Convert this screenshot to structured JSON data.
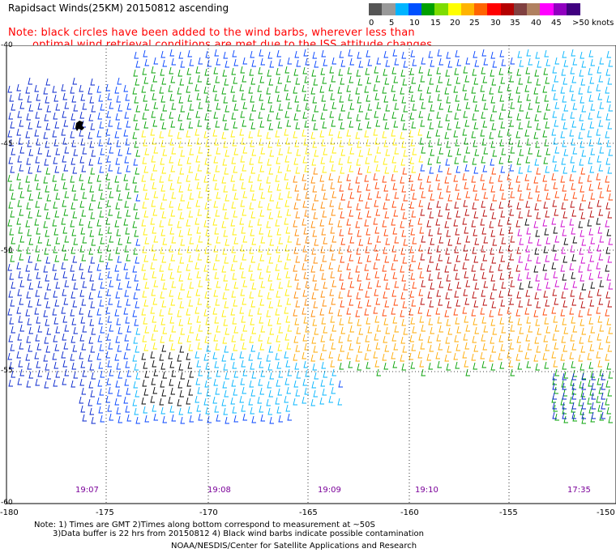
{
  "header": {
    "title": "Rapidsact Winds(25KM) 20150812 ascending"
  },
  "note": {
    "line1": "Note: black circles have been added to the wind barbs, wherever less than",
    "line2": "optimal wind retrieval conditions are met due to the ISS attitude changes."
  },
  "legend": {
    "labels": [
      "0",
      "5",
      "10",
      "15",
      "20",
      "25",
      "30",
      "35",
      "40",
      "45",
      ">50"
    ],
    "unit": "knots",
    "colors": [
      "#555555",
      "#999999",
      "#00b4ff",
      "#0050ff",
      "#00a000",
      "#7ddc00",
      "#ffff00",
      "#ffb400",
      "#ff6400",
      "#ff0000",
      "#b40000",
      "#804040",
      "#b08060",
      "#ff00ff",
      "#9000c0",
      "#400080"
    ]
  },
  "axes": {
    "lat_labels": [
      "-40",
      "-45",
      "-50",
      "-55",
      "-60"
    ],
    "lon_labels": [
      "-180",
      "-175",
      "-170",
      "-165",
      "-160",
      "-155",
      "-150"
    ]
  },
  "times": [
    "19:07",
    "19:08",
    "19:09",
    "19:10",
    "17:35"
  ],
  "footer": {
    "line1": "Note: 1) Times are GMT 2)Times along bottom correspond to measurement at ~50S",
    "line2": "3)Data buffer is 22 hrs from 20150812 4) Black wind barbs indicate possible contamination",
    "line3": "NOAA/NESDIS/Center for Satellite Applications and Research"
  }
}
